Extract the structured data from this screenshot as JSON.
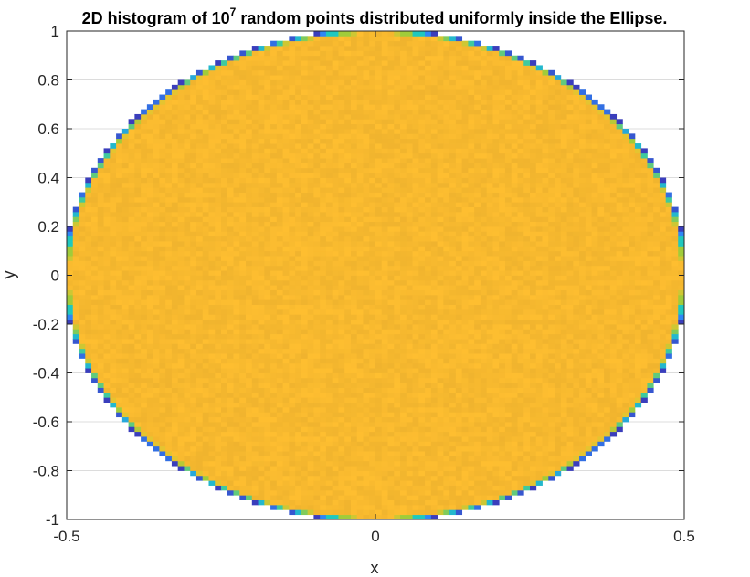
{
  "chart_data": {
    "type": "heatmap",
    "title": {
      "prefix": "2D histogram of 10",
      "superscript": "7",
      "suffix": " random points distributed uniformly inside the Ellipse."
    },
    "xlabel": "x",
    "ylabel": "y",
    "xlim": [
      -0.5,
      0.5
    ],
    "ylim": [
      -1,
      1
    ],
    "xticks": [
      -0.5,
      0,
      0.5
    ],
    "xtick_labels": [
      "-0.5",
      "0",
      "0.5"
    ],
    "yticks": [
      -1,
      -0.8,
      -0.6,
      -0.4,
      -0.2,
      0,
      0.2,
      0.4,
      0.6,
      0.8,
      1
    ],
    "ytick_labels": [
      "-1",
      "-0.8",
      "-0.6",
      "-0.4",
      "-0.2",
      "0",
      "0.2",
      "0.4",
      "0.6",
      "0.8",
      "1"
    ],
    "grid": true,
    "ellipse": {
      "center": [
        0,
        0
      ],
      "semi_axis_x": 0.5,
      "semi_axis_y": 1
    },
    "bins": {
      "x": 100,
      "y": 100
    },
    "interior_color": "#f7b92f",
    "colormap": [
      "#3e26a8",
      "#2e87f7",
      "#1fc8bf",
      "#a0cc3a",
      "#fcc12c",
      "#f7b92f"
    ]
  }
}
